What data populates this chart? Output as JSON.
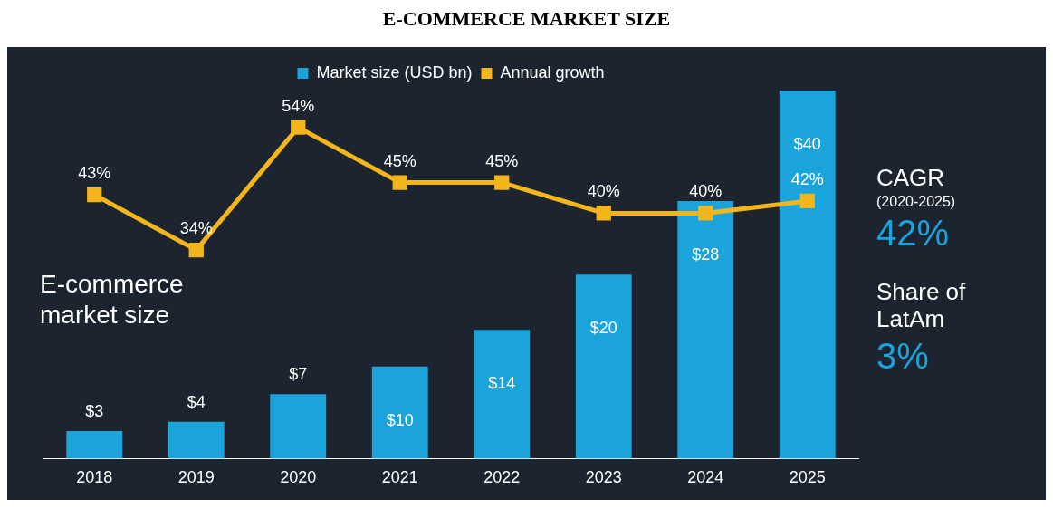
{
  "chart_data": {
    "type": "bar",
    "title": "E-COMMERCE MARKET SIZE",
    "categories": [
      "2018",
      "2019",
      "2020",
      "2021",
      "2022",
      "2023",
      "2024",
      "2025"
    ],
    "series": [
      {
        "name": "Market size (USD bn)",
        "color": "#1ba3dc",
        "values": [
          3,
          4,
          7,
          10,
          14,
          20,
          28,
          40
        ],
        "value_labels": [
          "$3",
          "$4",
          "$7",
          "$10",
          "$14",
          "$20",
          "$28",
          "$40"
        ]
      },
      {
        "name": "Annual growth",
        "type": "line",
        "axis": "y2",
        "color": "#f2b51c",
        "values": [
          43,
          34,
          54,
          45,
          45,
          40,
          40,
          42
        ],
        "value_labels": [
          "43%",
          "34%",
          "54%",
          "45%",
          "45%",
          "40%",
          "40%",
          "42%"
        ]
      }
    ],
    "annotations": [
      "E-commerce market size",
      "CAGR",
      "(2020-2025)",
      "42%",
      "Share of LatAm",
      "3%"
    ],
    "legend": "top",
    "grid": false,
    "marker": "square",
    "tick_labels": "x"
  }
}
